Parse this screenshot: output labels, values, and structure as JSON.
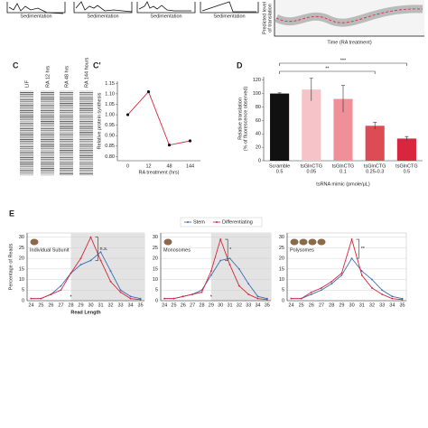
{
  "panel_labels": [
    "C",
    "C'",
    "D",
    "E"
  ],
  "top": {
    "sedimentation_labels": [
      "Sedimentation",
      "Sedimentation",
      "Sedimentation",
      "Sedimentation"
    ],
    "curve_ylabel": [
      "Predicted level",
      "of translation"
    ],
    "curve_xlabel": "Time (RA treatment)"
  },
  "gel": {
    "lanes": [
      "LIF",
      "RA 12 hrs",
      "RA 48 hrs",
      "RA 144 hours"
    ]
  },
  "chart_data": [
    {
      "type": "line",
      "xlabel": "RA treatment (hrs)",
      "ylabel": [
        "Relative protein synthesis"
      ],
      "categories": [
        "0",
        "12",
        "48",
        "144"
      ],
      "values": [
        1.0,
        1.11,
        0.855,
        0.875
      ],
      "color": "#d7263d",
      "ylim": [
        0.78,
        1.16
      ],
      "yticks": [
        {
          "value": 0.8,
          "label": "0.80"
        },
        0.85,
        {
          "value": 0.9,
          "label": "0.90"
        },
        0.95,
        {
          "value": 1.0,
          "label": "1.00"
        },
        1.05,
        {
          "value": 1.1,
          "label": "1.10"
        },
        1.15
      ]
    },
    {
      "type": "bar",
      "xlabel": "tsRNA mimic (pmole/μL)",
      "ylabel": [
        "Relative translation",
        "(% of fluorescence observed)"
      ],
      "categories": [
        [
          "Scramble",
          "0.5"
        ],
        [
          "tsGlnCTG",
          "0.05"
        ],
        [
          "tsGlnCTG",
          "0.1"
        ],
        [
          "tsGlnCTG",
          "0.25-0.3"
        ],
        [
          "tsGlnCTG",
          "0.5"
        ]
      ],
      "values": [
        100,
        106,
        92,
        52,
        33
      ],
      "errors": [
        1,
        17,
        20,
        5,
        3
      ],
      "colors": [
        "#111111",
        "#f6c3c8",
        "#ef8f97",
        "#dd4b55",
        "#d7263d"
      ],
      "ylim": [
        0,
        125
      ],
      "yticks": [
        0,
        20,
        40,
        60,
        80,
        100,
        120
      ],
      "brackets": [
        {
          "from": 0,
          "to": 3,
          "label": "**"
        },
        {
          "from": 0,
          "to": 4,
          "label": "***"
        }
      ]
    },
    {
      "type": "line",
      "title": "Individual Subunit",
      "xlabel": "Read Length",
      "ylabel": [
        "Percentage of Reads"
      ],
      "x": [
        24,
        25,
        26,
        27,
        28,
        29,
        30,
        31,
        32,
        33,
        34,
        35
      ],
      "series": [
        {
          "color": "#3d6eb5",
          "values": [
            1,
            1,
            3,
            7,
            13,
            17,
            19,
            23,
            14,
            5,
            2,
            1
          ]
        },
        {
          "color": "#d7263d",
          "values": [
            1,
            1,
            3,
            5,
            13,
            20,
            30,
            19,
            9,
            4,
            1,
            0.5
          ]
        }
      ],
      "xlim": [
        23.6,
        35.4
      ],
      "ylim": [
        0,
        32
      ],
      "xticks": [
        24,
        25,
        26,
        27,
        28,
        29,
        30,
        31,
        32,
        33,
        34,
        35
      ],
      "yticks": [
        0,
        5,
        10,
        15,
        20,
        25,
        30
      ],
      "grid": true,
      "shade": [
        28,
        35.4
      ],
      "significance": "n.s.",
      "marker": {
        "x": 28,
        "label": "*"
      }
    },
    {
      "type": "line",
      "title": "Monosomes",
      "legend": "top",
      "x": [
        24,
        25,
        26,
        27,
        28,
        29,
        30,
        31,
        32,
        33,
        34,
        35
      ],
      "series": [
        {
          "name": "Stem",
          "color": "#3d6eb5",
          "values": [
            1,
            1,
            2,
            3,
            5,
            12,
            19,
            20,
            15,
            8,
            2,
            1
          ]
        },
        {
          "name": "Differentiating",
          "color": "#d7263d",
          "values": [
            1,
            1,
            2,
            3,
            4,
            14,
            29,
            17,
            7,
            3,
            1,
            0.5
          ]
        }
      ],
      "xlim": [
        23.6,
        35.4
      ],
      "ylim": [
        0,
        32
      ],
      "xticks": [
        24,
        25,
        26,
        27,
        28,
        29,
        30,
        31,
        32,
        33,
        34,
        35
      ],
      "yticks": [
        0,
        5,
        10,
        15,
        20,
        25,
        30
      ],
      "grid": true,
      "shade": [
        29,
        35.4
      ],
      "significance": "*",
      "marker": {
        "x": 29,
        "label": "*"
      }
    },
    {
      "type": "line",
      "title": "Polysomes",
      "x": [
        24,
        25,
        26,
        27,
        28,
        29,
        30,
        31,
        32,
        33,
        34,
        35
      ],
      "series": [
        {
          "color": "#3d6eb5",
          "values": [
            1,
            1,
            3,
            5,
            8,
            12,
            20,
            14,
            10,
            5,
            2,
            1
          ]
        },
        {
          "color": "#d7263d",
          "values": [
            1,
            1,
            4,
            6,
            9,
            13,
            29,
            12,
            6,
            3,
            1,
            0.5
          ]
        }
      ],
      "xlim": [
        23.6,
        35.4
      ],
      "ylim": [
        0,
        32
      ],
      "xticks": [
        24,
        25,
        26,
        27,
        28,
        29,
        30,
        31,
        32,
        33,
        34,
        35
      ],
      "yticks": [
        0,
        5,
        10,
        15,
        20,
        25,
        30
      ],
      "grid": true,
      "significance": "**"
    }
  ]
}
